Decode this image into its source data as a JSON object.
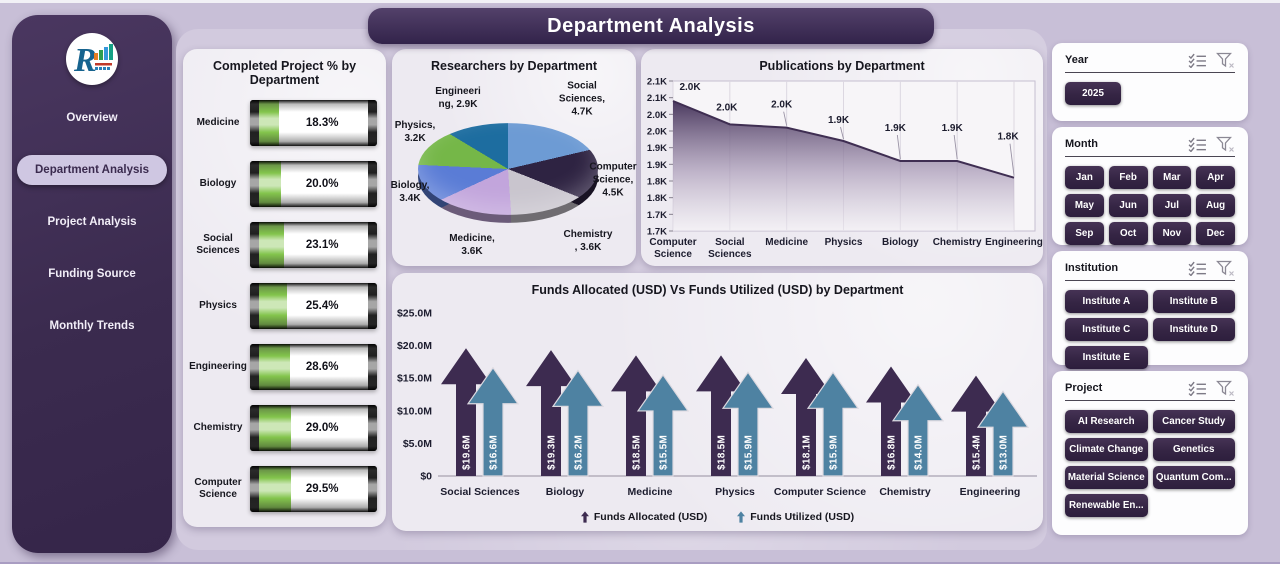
{
  "header": {
    "title": "Department Analysis"
  },
  "sidebar": {
    "logo": "R",
    "items": [
      {
        "label": "Overview",
        "active": false
      },
      {
        "label": "Department Analysis",
        "active": true
      },
      {
        "label": "Project Analysis",
        "active": false
      },
      {
        "label": "Funding Source",
        "active": false
      },
      {
        "label": "Monthly Trends",
        "active": false
      }
    ]
  },
  "filters": {
    "year": {
      "title": "Year",
      "options": [
        "2025"
      ]
    },
    "month": {
      "title": "Month",
      "options": [
        "Jan",
        "Feb",
        "Mar",
        "Apr",
        "May",
        "Jun",
        "Jul",
        "Aug",
        "Sep",
        "Oct",
        "Nov",
        "Dec"
      ]
    },
    "institution": {
      "title": "Institution",
      "options": [
        "Institute A",
        "Institute B",
        "Institute C",
        "Institute D",
        "Institute E"
      ]
    },
    "project": {
      "title": "Project",
      "options": [
        "AI Research",
        "Cancer Study",
        "Climate Change",
        "Genetics",
        "Material Science",
        "Quantum Com...",
        "Renewable En..."
      ]
    }
  },
  "chart_data": [
    {
      "id": "completed-projects",
      "type": "bar",
      "style": "battery-gauge",
      "title": "Completed Project % by Department",
      "categories": [
        "Medicine",
        "Biology",
        "Social Sciences",
        "Physics",
        "Engineering",
        "Chemistry",
        "Computer Science"
      ],
      "values": [
        18.3,
        20.0,
        23.1,
        25.4,
        28.6,
        29.0,
        29.5
      ],
      "value_labels": [
        "18.3%",
        "20.0%",
        "23.1%",
        "25.4%",
        "28.6%",
        "29.0%",
        "29.5%"
      ],
      "xlim": [
        0,
        100
      ],
      "fill_color": "#7cc142"
    },
    {
      "id": "researchers",
      "type": "pie",
      "effect": "3d",
      "title": "Researchers by Department",
      "start_angle_deg": 0,
      "clockwise": true,
      "slices": [
        {
          "name": "Social Sciences",
          "value": 4700,
          "label_lines": [
            "Social",
            "Sciences,",
            "4.7K"
          ],
          "color": "#6d9bd4"
        },
        {
          "name": "Computer Science",
          "value": 4500,
          "label_lines": [
            "Computer",
            "Science,",
            "4.5K"
          ],
          "color": "#2e2342"
        },
        {
          "name": "Chemistry",
          "value": 3600,
          "label_lines": [
            "Chemistry",
            ", 3.6K"
          ],
          "color": "#c9c5ce"
        },
        {
          "name": "Medicine",
          "value": 3600,
          "label_lines": [
            "Medicine,",
            "3.6K"
          ],
          "color": "#c2a5dc"
        },
        {
          "name": "Biology",
          "value": 3400,
          "label_lines": [
            "Biology,",
            "3.4K"
          ],
          "color": "#5a7cd6"
        },
        {
          "name": "Physics",
          "value": 3200,
          "label_lines": [
            "Physics,",
            "3.2K"
          ],
          "color": "#75b748"
        },
        {
          "name": "Engineering",
          "value": 2900,
          "label_lines": [
            "Engineeri",
            "ng, 2.9K"
          ],
          "color": "#1d6da0"
        }
      ]
    },
    {
      "id": "publications",
      "type": "area",
      "title": "Publications by Department",
      "categories": [
        "Computer Science",
        "Social Sciences",
        "Medicine",
        "Physics",
        "Biology",
        "Chemistry",
        "Engineering"
      ],
      "values": [
        2040,
        1970,
        1960,
        1920,
        1860,
        1860,
        1810
      ],
      "point_labels": [
        "2.0K",
        "2.0K",
        "2.0K",
        "1.9K",
        "1.9K",
        "1.9K",
        "1.8K"
      ],
      "ylim": [
        1650,
        2100
      ],
      "ytick_labels_top_to_bottom": [
        "2.1K",
        "2.1K",
        "2.0K",
        "2.0K",
        "1.9K",
        "1.9K",
        "1.8K",
        "1.8K",
        "1.7K",
        "1.7K"
      ],
      "grid": "vertical",
      "line_color": "#3f2e52"
    },
    {
      "id": "funds",
      "type": "bar",
      "style": "arrow-bars",
      "title": "Funds Allocated (USD) Vs Funds Utilized (USD) by Department",
      "categories": [
        "Social Sciences",
        "Biology",
        "Medicine",
        "Physics",
        "Computer Science",
        "Chemistry",
        "Engineering"
      ],
      "series": [
        {
          "name": "Funds Allocated (USD)",
          "color": "#3d2b50",
          "values": [
            19.6,
            19.3,
            18.5,
            18.5,
            18.1,
            16.8,
            15.4
          ],
          "labels": [
            "$19.6M",
            "$19.3M",
            "$18.5M",
            "$18.5M",
            "$18.1M",
            "$16.8M",
            "$15.4M"
          ]
        },
        {
          "name": "Funds Utilized (USD)",
          "color": "#4e82a2",
          "values": [
            16.6,
            16.2,
            15.5,
            15.9,
            15.9,
            14.0,
            13.0
          ],
          "labels": [
            "$16.6M",
            "$16.2M",
            "$15.5M",
            "$15.9M",
            "$15.9M",
            "$14.0M",
            "$13.0M"
          ]
        }
      ],
      "ylim": [
        0,
        25
      ],
      "ytick_labels": [
        "$0",
        "$5.0M",
        "$10.0M",
        "$15.0M",
        "$20.0M",
        "$25.0M"
      ],
      "legend_position": "bottom"
    }
  ]
}
